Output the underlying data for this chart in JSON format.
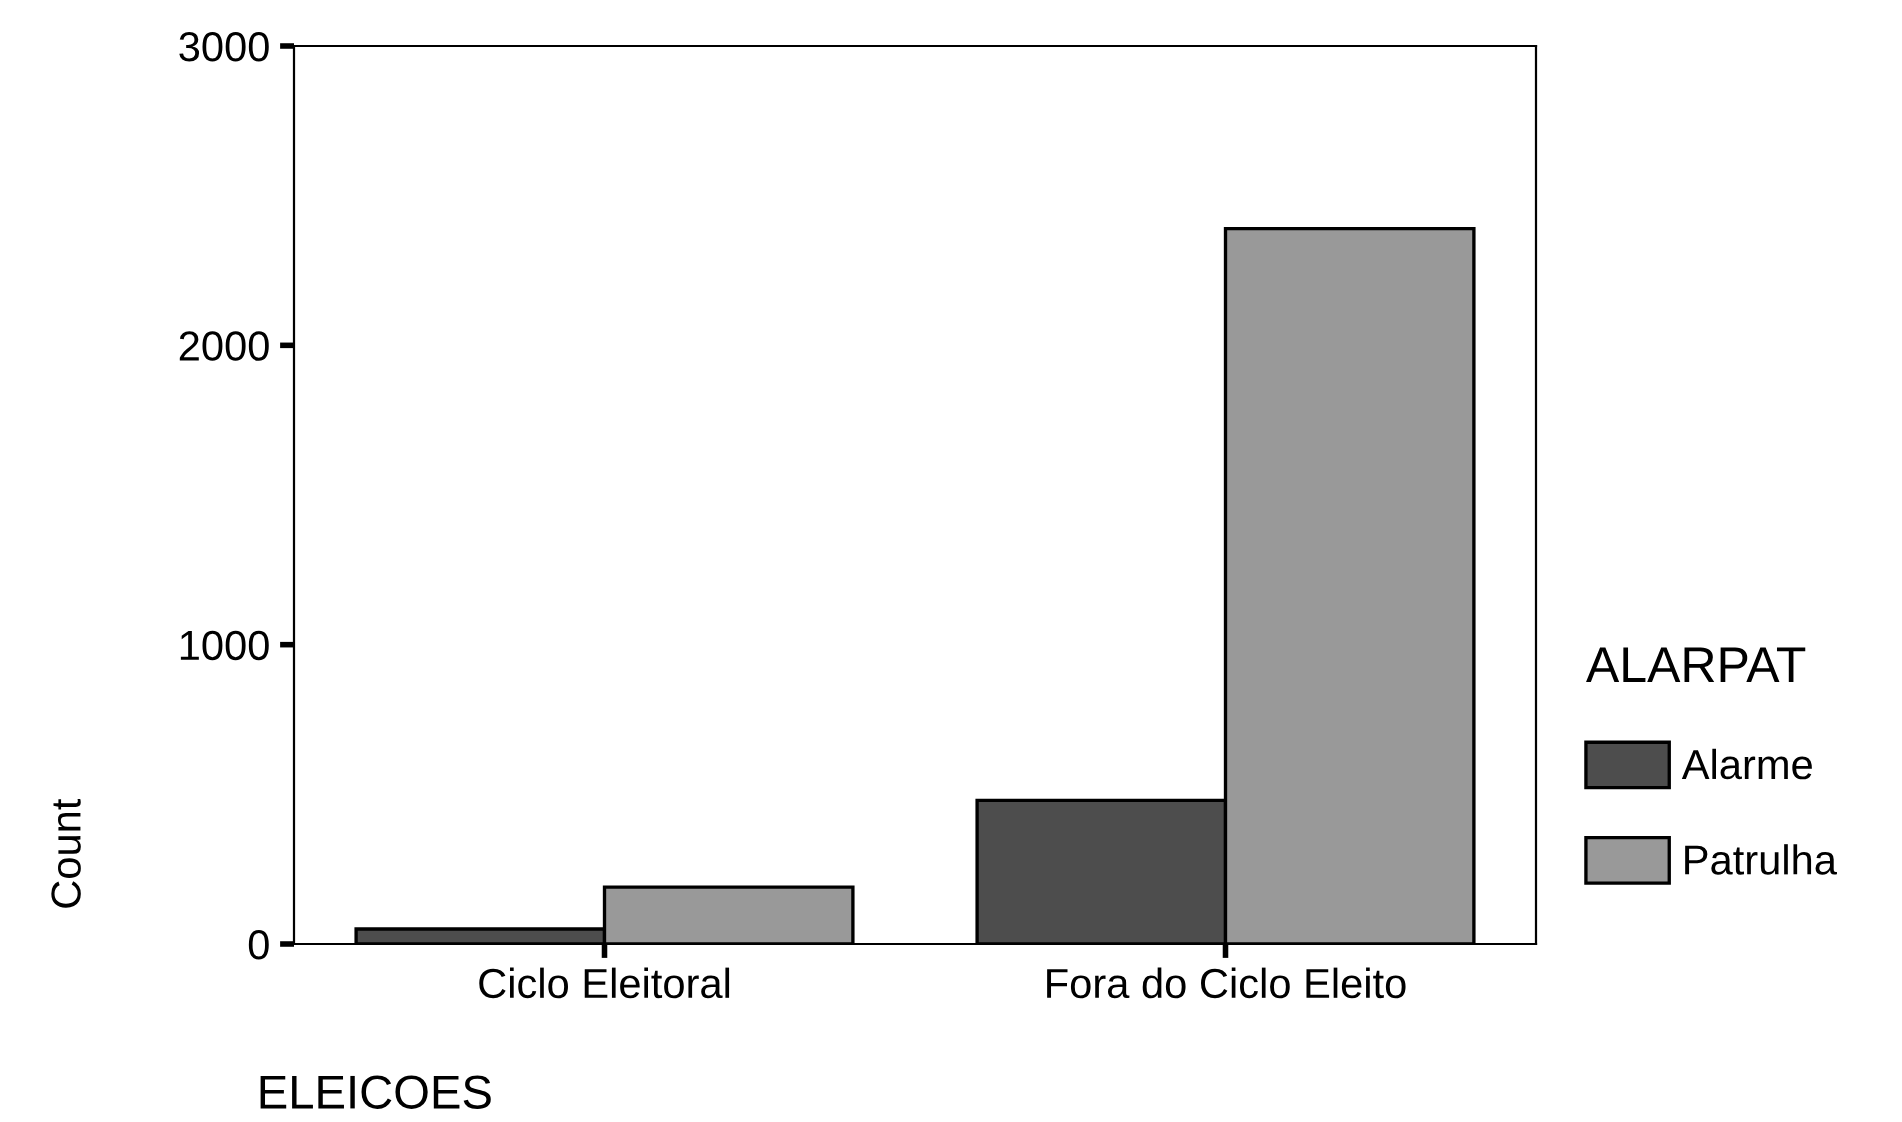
{
  "chart_data": {
    "type": "bar",
    "xlabel": "ELEICOES",
    "ylabel": "Count",
    "legend_title": "ALARPAT",
    "categories": [
      "Ciclo Eleitoral",
      "Fora do Ciclo Eleito"
    ],
    "series": [
      {
        "name": "Alarme",
        "color": "#4d4d4d",
        "values": [
          50,
          480
        ]
      },
      {
        "name": "Patrulha",
        "color": "#999999",
        "values": [
          190,
          2390
        ]
      }
    ],
    "ylim": [
      0,
      3000
    ],
    "yticks": [
      0,
      1000,
      2000,
      3000
    ],
    "grid": false,
    "legend": "right"
  }
}
